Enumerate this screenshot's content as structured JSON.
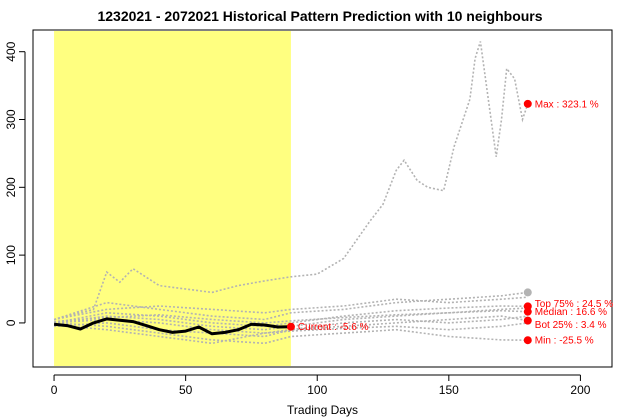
{
  "chart_data": {
    "type": "line",
    "title": "1232021 - 2072021 Historical Pattern Prediction with 10 neighbours",
    "xlabel": "Trading Days",
    "ylabel": "",
    "xlim": [
      -8,
      212
    ],
    "ylim": [
      -65,
      432
    ],
    "x_ticks": [
      0,
      50,
      100,
      150,
      200
    ],
    "y_ticks": [
      0,
      100,
      200,
      300,
      400
    ],
    "highlight_range": {
      "x_start": 0,
      "x_end": 90,
      "color": "#ffff80"
    },
    "colors": {
      "neighbours": "#b3b3b3",
      "current": "#000000",
      "markers": "#ff0000"
    },
    "current_series": {
      "name": "current",
      "x": [
        0,
        5,
        10,
        15,
        20,
        25,
        30,
        35,
        40,
        45,
        50,
        55,
        60,
        65,
        70,
        75,
        80,
        85,
        90
      ],
      "y": [
        -2,
        -4,
        -9,
        0,
        6,
        4,
        2,
        -4,
        -10,
        -14,
        -12,
        -6,
        -16,
        -14,
        -10,
        -2,
        -3,
        -6,
        -5.6
      ]
    },
    "neighbour_series": [
      {
        "x": [
          0,
          15,
          20,
          25,
          30,
          40,
          50,
          60,
          70,
          80,
          90,
          100,
          110,
          120,
          125,
          130,
          133,
          138,
          142,
          148,
          152,
          158,
          160,
          162,
          165,
          168,
          170,
          172,
          175,
          178,
          180
        ],
        "y": [
          5,
          20,
          75,
          60,
          80,
          55,
          50,
          45,
          55,
          62,
          68,
          72,
          95,
          150,
          175,
          225,
          240,
          210,
          200,
          195,
          260,
          330,
          390,
          415,
          330,
          245,
          300,
          375,
          360,
          300,
          323.1
        ]
      },
      {
        "x": [
          0,
          20,
          40,
          60,
          80,
          90,
          110,
          130,
          150,
          170,
          180
        ],
        "y": [
          5,
          30,
          20,
          10,
          5,
          15,
          20,
          30,
          35,
          40,
          45
        ]
      },
      {
        "x": [
          0,
          20,
          40,
          60,
          80,
          90,
          110,
          130,
          150,
          170,
          180
        ],
        "y": [
          0,
          15,
          10,
          0,
          -5,
          0,
          10,
          18,
          22,
          25,
          24.5
        ]
      },
      {
        "x": [
          0,
          20,
          40,
          60,
          80,
          90,
          110,
          130,
          150,
          170,
          180
        ],
        "y": [
          0,
          10,
          5,
          -5,
          -10,
          -5,
          5,
          10,
          15,
          18,
          16.6
        ]
      },
      {
        "x": [
          0,
          20,
          40,
          60,
          80,
          90,
          110,
          130,
          150,
          170,
          180
        ],
        "y": [
          0,
          5,
          0,
          -10,
          -15,
          -10,
          -5,
          0,
          5,
          10,
          3.4
        ]
      },
      {
        "x": [
          0,
          20,
          40,
          60,
          80,
          90,
          110,
          130,
          150,
          170,
          180
        ],
        "y": [
          0,
          -5,
          -15,
          -25,
          -30,
          -20,
          -15,
          -10,
          -20,
          -25,
          -25.5
        ]
      },
      {
        "x": [
          0,
          20,
          40,
          60,
          80,
          90,
          110,
          130,
          150,
          170,
          180
        ],
        "y": [
          -5,
          0,
          -10,
          -15,
          -20,
          -10,
          0,
          5,
          0,
          5,
          10
        ]
      },
      {
        "x": [
          0,
          20,
          40,
          60,
          80,
          90,
          110,
          130,
          150,
          170,
          180
        ],
        "y": [
          5,
          20,
          25,
          20,
          15,
          20,
          25,
          35,
          30,
          35,
          38
        ]
      },
      {
        "x": [
          0,
          20,
          40,
          60,
          80,
          90,
          110,
          130,
          150,
          170,
          180
        ],
        "y": [
          -3,
          -10,
          -20,
          -30,
          -15,
          -12,
          -8,
          -5,
          -10,
          -5,
          0
        ]
      },
      {
        "x": [
          0,
          20,
          40,
          60,
          80,
          90,
          110,
          130,
          150,
          170,
          180
        ],
        "y": [
          2,
          8,
          12,
          5,
          0,
          3,
          8,
          12,
          15,
          20,
          22
        ]
      }
    ],
    "markers": [
      {
        "label": "Current : -5.6 %",
        "x": 90,
        "y": -5.6,
        "color": "#ff0000"
      },
      {
        "label": "Max : 323.1 %",
        "x": 180,
        "y": 323.1,
        "color": "#ff0000"
      },
      {
        "label": "Top 75% : 24.5 %",
        "x": 180,
        "y": 24.5,
        "color": "#ff0000"
      },
      {
        "label": "Median : 16.6 %",
        "x": 180,
        "y": 16.6,
        "color": "#ff0000"
      },
      {
        "label": "Bot 25% : 3.4 %",
        "x": 180,
        "y": 3.4,
        "color": "#ff0000"
      },
      {
        "label": "Min : -25.5 %",
        "x": 180,
        "y": -25.5,
        "color": "#ff0000"
      },
      {
        "label": "",
        "x": 180,
        "y": 45,
        "color": "#b3b3b3"
      }
    ],
    "grid": false,
    "legend": "none"
  }
}
